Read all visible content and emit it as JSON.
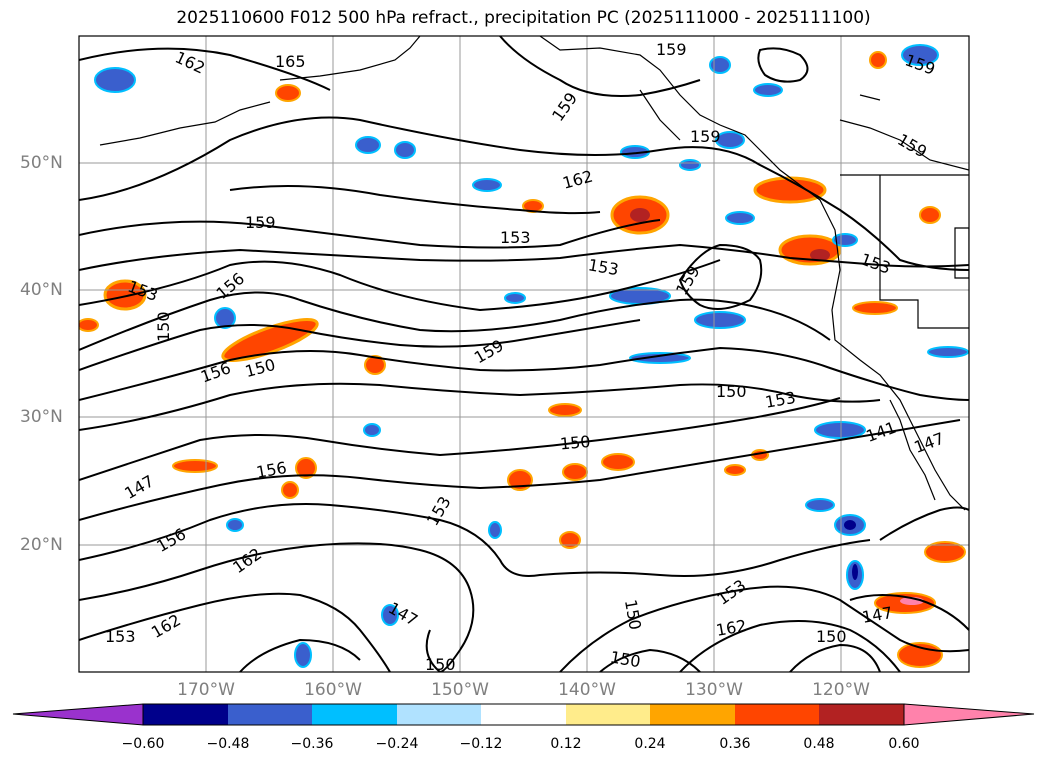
{
  "title": "2025110600 F012 500 hPa refract., precipitation PC (2025111000 - 2025111100)",
  "lat_labels": [
    "50°N",
    "40°N",
    "30°N",
    "20°N"
  ],
  "lon_labels": [
    "170°W",
    "160°W",
    "150°W",
    "140°W",
    "130°W",
    "120°W"
  ],
  "contour_labels": [
    "162",
    "165",
    "159",
    "159",
    "159",
    "159",
    "162",
    "159",
    "153",
    "156",
    "153",
    "153",
    "159",
    "159",
    "150",
    "156",
    "150",
    "153",
    "159",
    "150",
    "153",
    "150",
    "147",
    "156",
    "153",
    "156",
    "162",
    "150",
    "147",
    "153",
    "162",
    "153",
    "162",
    "141",
    "147",
    "150",
    "150",
    "147",
    "150"
  ],
  "colorbar": {
    "colors": [
      "#9a32cd",
      "#00008b",
      "#3a5fcd",
      "#00bfff",
      "#b0e2ff",
      "#ffffff",
      "#ffec8b",
      "#ffa500",
      "#ff4500",
      "#b22222",
      "#ff82ab"
    ],
    "tick_labels": [
      "−0.60",
      "−0.48",
      "−0.36",
      "−0.24",
      "−0.12",
      "0.12",
      "0.24",
      "0.36",
      "0.48",
      "0.60"
    ]
  },
  "legend_colors": {
    "contour": "#000000",
    "gridline": "#999999",
    "coast": "#000000"
  }
}
